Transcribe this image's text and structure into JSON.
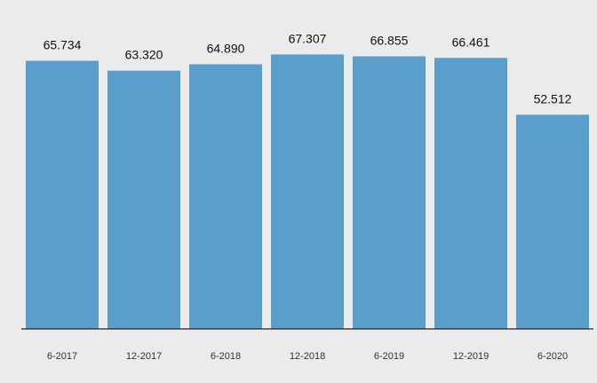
{
  "chart_data": {
    "type": "bar",
    "categories": [
      "6-2017",
      "12-2017",
      "6-2018",
      "12-2018",
      "6-2019",
      "12-2019",
      "6-2020"
    ],
    "values": [
      65.734,
      63.32,
      64.89,
      67.307,
      66.855,
      66.461,
      52.512
    ],
    "value_labels": [
      "65.734",
      "63.320",
      "64.890",
      "67.307",
      "66.855",
      "66.461",
      "52.512"
    ],
    "title": "",
    "xlabel": "",
    "ylabel": "",
    "ylim": [
      0,
      70
    ],
    "grid": false,
    "legend": "none",
    "colors": {
      "bar": "#5a9ecb",
      "background": "#ebebeb",
      "axis": "#222222"
    }
  }
}
